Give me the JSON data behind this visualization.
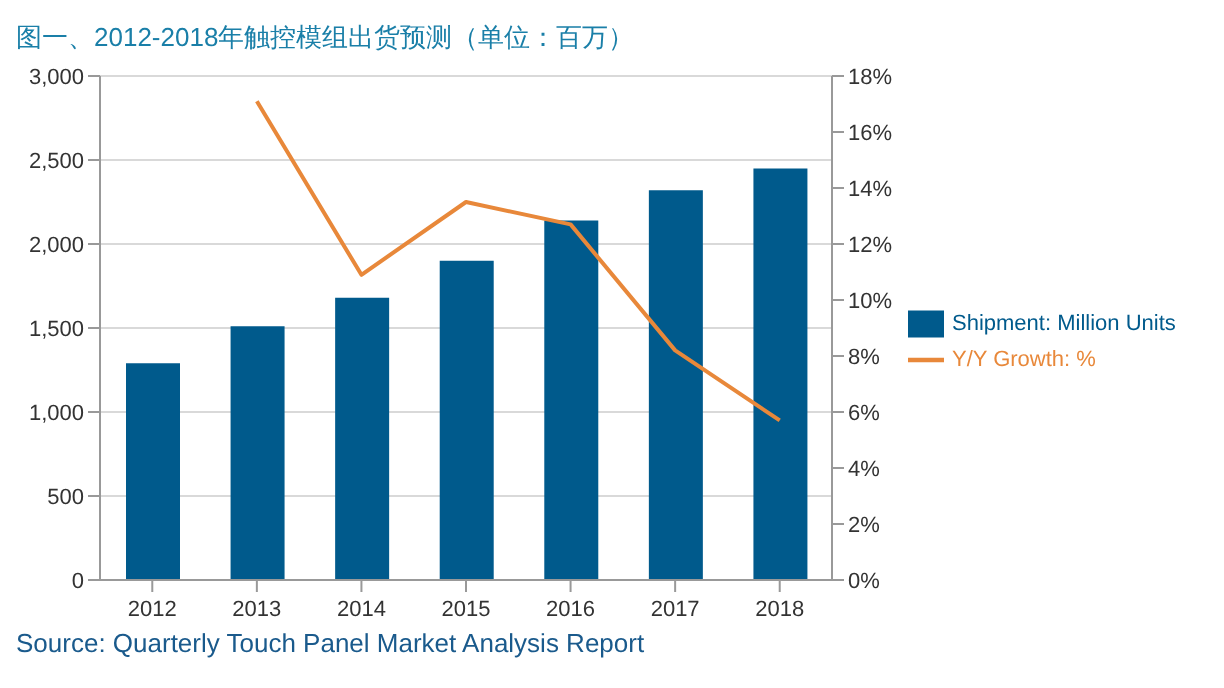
{
  "chart_data": {
    "type": "bar",
    "title": "图一、2012-2018年触控模组出货预测（单位：百万）",
    "categories": [
      "2012",
      "2013",
      "2014",
      "2015",
      "2016",
      "2017",
      "2018"
    ],
    "series": [
      {
        "name": "Shipment: Million Units",
        "color": "#005a8c",
        "values": [
          1290,
          1510,
          1680,
          1900,
          2140,
          2320,
          2450
        ]
      },
      {
        "name": "Y/Y Growth: %",
        "type": "line",
        "axis": "y2",
        "color": "#e8883a",
        "values": [
          null,
          17.1,
          10.9,
          13.5,
          12.7,
          8.2,
          5.7
        ]
      }
    ],
    "ylim": [
      0,
      3000
    ],
    "yticks": [
      {
        "value": 0,
        "label": "0"
      },
      {
        "value": 500,
        "label": "500"
      },
      {
        "value": 1000,
        "label": "1,000"
      },
      {
        "value": 1500,
        "label": "1,500"
      },
      {
        "value": 2000,
        "label": "2,000"
      },
      {
        "value": 2500,
        "label": "2,500"
      },
      {
        "value": 3000,
        "label": "3,000"
      }
    ],
    "y2lim": [
      0,
      18
    ],
    "y2ticks": [
      {
        "value": 0,
        "label": "0%"
      },
      {
        "value": 2,
        "label": "2%"
      },
      {
        "value": 4,
        "label": "4%"
      },
      {
        "value": 6,
        "label": "6%"
      },
      {
        "value": 8,
        "label": "8%"
      },
      {
        "value": 10,
        "label": "10%"
      },
      {
        "value": 12,
        "label": "12%"
      },
      {
        "value": 14,
        "label": "14%"
      },
      {
        "value": 16,
        "label": "16%"
      },
      {
        "value": 18,
        "label": "18%"
      }
    ],
    "grid": "y",
    "legend": "right",
    "marker": "none",
    "line_style": "solid",
    "annotations": [
      "Source: Quarterly Touch Panel Market Analysis Report"
    ]
  }
}
